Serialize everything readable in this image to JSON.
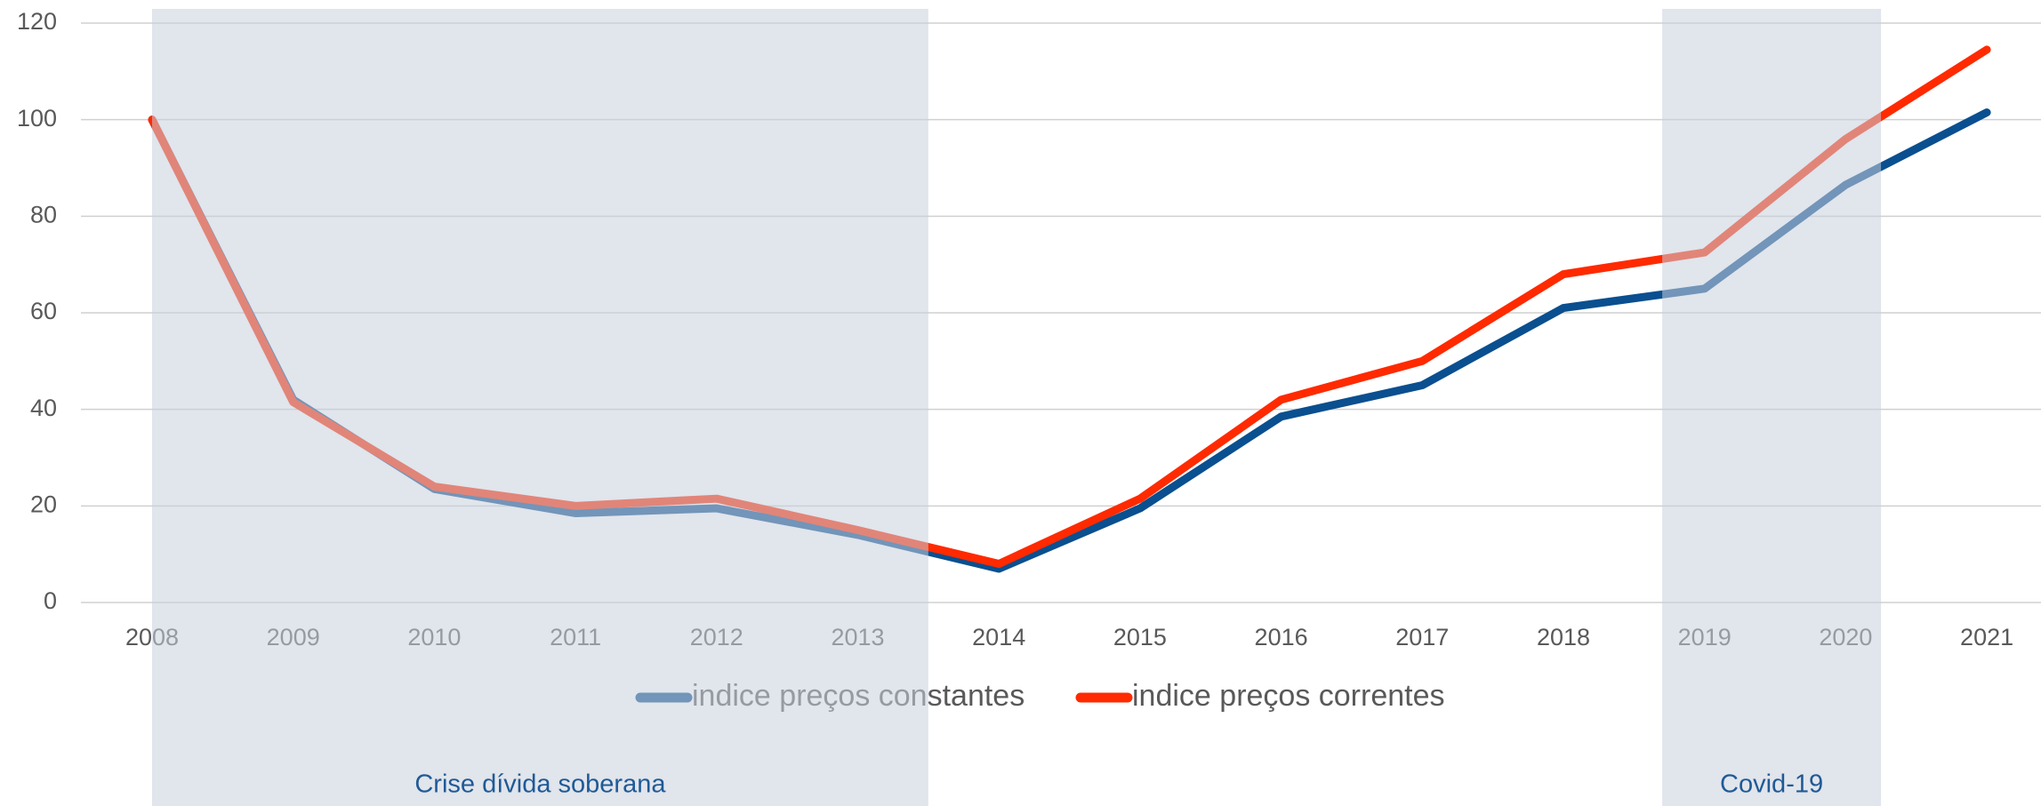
{
  "chart_data": {
    "type": "line",
    "categories": [
      "2008",
      "2009",
      "2010",
      "2011",
      "2012",
      "2013",
      "2014",
      "2015",
      "2016",
      "2017",
      "2018",
      "2019",
      "2020",
      "2021"
    ],
    "series": [
      {
        "name": "indice preços constantes",
        "color": "#0a4f8f",
        "values": [
          100,
          42,
          23.5,
          18.5,
          19.5,
          14,
          7,
          19.5,
          38.5,
          45,
          61,
          65,
          86.5,
          101.5
        ]
      },
      {
        "name": "indice preços correntes",
        "color": "#ff2a00",
        "values": [
          100,
          41.5,
          24,
          20,
          21.5,
          15,
          8,
          21.5,
          42,
          50,
          68,
          72.5,
          96,
          114.5
        ]
      }
    ],
    "ylim": [
      0,
      120
    ],
    "yticks": [
      0,
      20,
      40,
      60,
      80,
      100,
      120
    ],
    "grid": true,
    "shaded_regions": [
      {
        "label": "Crise dívida soberana",
        "start": 2008,
        "end": 2013.5
      },
      {
        "label": "Covid-19",
        "start": 2018.7,
        "end": 2020.25
      }
    ]
  }
}
